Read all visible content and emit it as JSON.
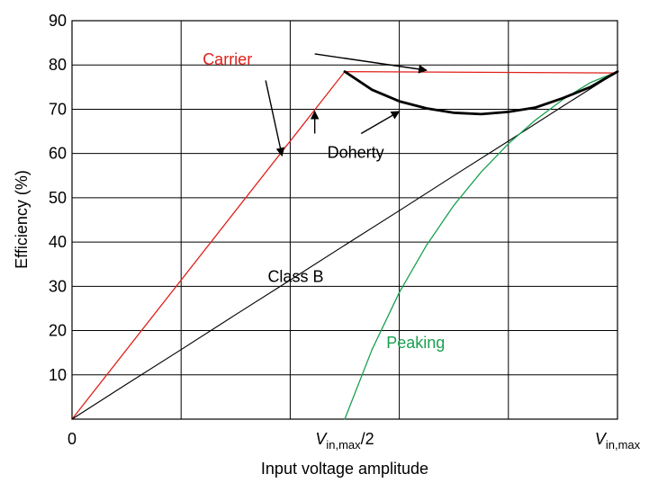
{
  "chart_data": {
    "type": "line",
    "xlabel": "Input voltage amplitude",
    "ylabel": "Efficiency (%)",
    "xlim": [
      0,
      1
    ],
    "ylim": [
      0,
      90
    ],
    "grid": true,
    "x_ticks": [
      {
        "value": 0,
        "main": "0",
        "sub": ""
      },
      {
        "value": 0.5,
        "main": "V",
        "sub": "in,max",
        "suffix": "/2"
      },
      {
        "value": 1,
        "main": "V",
        "sub": "in,max",
        "suffix": ""
      }
    ],
    "x_grid": [
      0,
      0.2,
      0.4,
      0.6,
      0.8,
      1.0
    ],
    "y_ticks": [
      10,
      20,
      30,
      40,
      50,
      60,
      70,
      80,
      90
    ],
    "series": [
      {
        "name": "Carrier",
        "color": "#e0201a",
        "width": 1.3,
        "points": [
          [
            0,
            0
          ],
          [
            0.5,
            78.5
          ],
          [
            1,
            78.2
          ]
        ]
      },
      {
        "name": "Class B",
        "color": "#000000",
        "width": 1.1,
        "points": [
          [
            0,
            0
          ],
          [
            0.1,
            7.9
          ],
          [
            0.2,
            15.7
          ],
          [
            0.3,
            23.6
          ],
          [
            0.4,
            31.4
          ],
          [
            0.5,
            39.3
          ],
          [
            0.6,
            47.1
          ],
          [
            0.7,
            55.0
          ],
          [
            0.8,
            62.8
          ],
          [
            0.9,
            70.7
          ],
          [
            1,
            78.5
          ]
        ]
      },
      {
        "name": "Peaking",
        "color": "#1aa050",
        "width": 1.3,
        "points": [
          [
            0.5,
            0
          ],
          [
            0.55,
            15.7
          ],
          [
            0.6,
            28.6
          ],
          [
            0.65,
            39.3
          ],
          [
            0.7,
            48.3
          ],
          [
            0.75,
            55.8
          ],
          [
            0.8,
            62.2
          ],
          [
            0.85,
            67.6
          ],
          [
            0.9,
            72.2
          ],
          [
            0.95,
            76.0
          ],
          [
            1,
            78.5
          ]
        ]
      },
      {
        "name": "Doherty",
        "color": "#000000",
        "width": 2.8,
        "points": [
          [
            0.5,
            78.5
          ],
          [
            0.55,
            74.4
          ],
          [
            0.6,
            71.8
          ],
          [
            0.65,
            70.2
          ],
          [
            0.7,
            69.2
          ],
          [
            0.75,
            68.9
          ],
          [
            0.8,
            69.4
          ],
          [
            0.85,
            70.4
          ],
          [
            0.9,
            72.5
          ],
          [
            0.95,
            75.0
          ],
          [
            1,
            78.5
          ]
        ]
      }
    ],
    "annotations": [
      {
        "text": "Carrier",
        "color": "#e0201a",
        "at": [
          0.285,
          80
        ]
      },
      {
        "text": "Doherty",
        "color": "#000000",
        "at": [
          0.52,
          59
        ]
      },
      {
        "text": "Class B",
        "color": "#000000",
        "at": [
          0.41,
          31
        ]
      },
      {
        "text": "Peaking",
        "color": "#1aa050",
        "at": [
          0.63,
          16
        ]
      }
    ],
    "arrows": [
      {
        "from": [
          0.355,
          76.5
        ],
        "to": [
          0.385,
          59.5
        ]
      },
      {
        "from": [
          0.445,
          64.5
        ],
        "to": [
          0.445,
          69.5
        ]
      },
      {
        "from": [
          0.53,
          64.5
        ],
        "to": [
          0.6,
          69.5
        ]
      },
      {
        "from": [
          0.445,
          82.5
        ],
        "to": [
          0.65,
          78.8
        ]
      }
    ]
  }
}
